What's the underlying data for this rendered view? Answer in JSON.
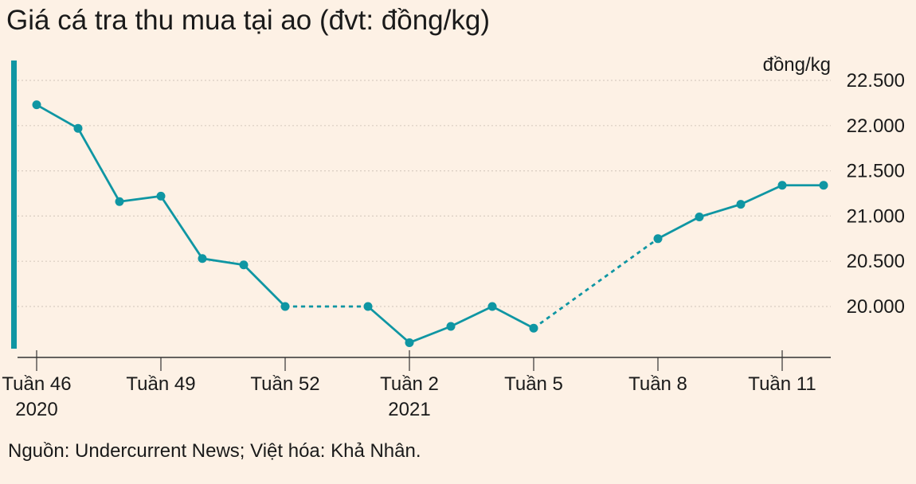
{
  "title": "Giá cá tra thu mua tại ao (đvt: đồng/kg)",
  "source": "Nguồn: Undercurrent News; Việt hóa: Khả Nhân.",
  "colors": {
    "background": "#fdf1e5",
    "line": "#0f96a3",
    "accent_bar": "#0f96a3",
    "grid": "#d9cdc2",
    "text": "#1a1a1a"
  },
  "chart_data": {
    "type": "line",
    "title": "Giá cá tra thu mua tại ao (đvt: đồng/kg)",
    "ylabel": "đồng/kg",
    "xlabel": "",
    "y_axis_side": "right",
    "ylim": [
      19550,
      22800
    ],
    "yticks": [
      20000,
      20500,
      21000,
      21500,
      22000,
      22500
    ],
    "ytick_labels": [
      "20.000",
      "20.500",
      "21.000",
      "21.500",
      "22.000",
      "22.500"
    ],
    "grid": "horizontal dotted",
    "x_labels": [
      {
        "week": 46,
        "label": "Tuần 46",
        "sublabel": "2020"
      },
      {
        "week": 49,
        "label": "Tuần 49",
        "sublabel": ""
      },
      {
        "week": 52,
        "label": "Tuần 52",
        "sublabel": ""
      },
      {
        "week": 55,
        "label": "Tuần 2",
        "sublabel": "2021"
      },
      {
        "week": 58,
        "label": "Tuần 5",
        "sublabel": ""
      },
      {
        "week": 61,
        "label": "Tuần 8",
        "sublabel": ""
      },
      {
        "week": 64,
        "label": "Tuần 11",
        "sublabel": ""
      }
    ],
    "x_extra_ticks": [
      46,
      55,
      64
    ],
    "series": [
      {
        "points": [
          {
            "week": 46,
            "value": 22230
          },
          {
            "week": 47,
            "value": 21970
          },
          {
            "week": 48,
            "value": 21160
          },
          {
            "week": 49,
            "value": 21220
          },
          {
            "week": 50,
            "value": 20530
          },
          {
            "week": 51,
            "value": 20460
          },
          {
            "week": 52,
            "value": 20000
          },
          {
            "week": 54,
            "value": 20000
          },
          {
            "week": 55,
            "value": 19600
          },
          {
            "week": 56,
            "value": 19780
          },
          {
            "week": 57,
            "value": 20000
          },
          {
            "week": 58,
            "value": 19760
          },
          {
            "week": 61,
            "value": 20750
          },
          {
            "week": 62,
            "value": 20990
          },
          {
            "week": 63,
            "value": 21130
          },
          {
            "week": 64,
            "value": 21340
          },
          {
            "week": 65,
            "value": 21340
          }
        ],
        "segments": [
          {
            "from": 46,
            "to": 52,
            "style": "solid"
          },
          {
            "from": 52,
            "to": 54,
            "style": "dashed"
          },
          {
            "from": 54,
            "to": 58,
            "style": "solid"
          },
          {
            "from": 58,
            "to": 61,
            "style": "dashed"
          },
          {
            "from": 61,
            "to": 65,
            "style": "solid"
          }
        ]
      }
    ]
  }
}
